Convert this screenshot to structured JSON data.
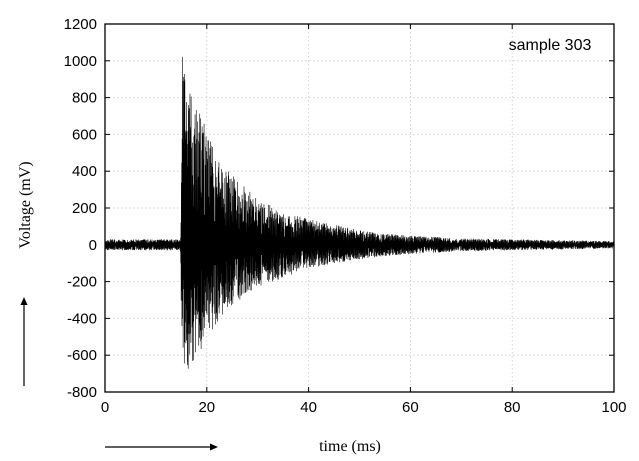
{
  "chart_data": {
    "type": "line",
    "title": "",
    "xlabel": "time (ms)",
    "ylabel": "Voltage (mV)",
    "annotation": "sample 303",
    "xlim": [
      0,
      100
    ],
    "ylim": [
      -800,
      1200
    ],
    "x_ticks": [
      0,
      20,
      40,
      60,
      80,
      100
    ],
    "y_ticks": [
      -800,
      -600,
      -400,
      -200,
      0,
      200,
      400,
      600,
      800,
      1000,
      1200
    ],
    "grid": true,
    "legend": "none",
    "series": [
      {
        "color": "#000000",
        "envelope_x": [
          0,
          14.8,
          15.2,
          16,
          17,
          18,
          20,
          22,
          25,
          30,
          35,
          40,
          45,
          50,
          55,
          60,
          70,
          80,
          90,
          100
        ],
        "envelope_upper": [
          30,
          30,
          1030,
          950,
          870,
          760,
          620,
          480,
          380,
          250,
          180,
          140,
          110,
          80,
          60,
          50,
          35,
          30,
          25,
          20
        ],
        "envelope_lower": [
          -30,
          -30,
          -750,
          -780,
          -680,
          -620,
          -500,
          -430,
          -330,
          -230,
          -180,
          -130,
          -100,
          -80,
          -60,
          -50,
          -35,
          -30,
          -25,
          -20
        ]
      }
    ]
  }
}
